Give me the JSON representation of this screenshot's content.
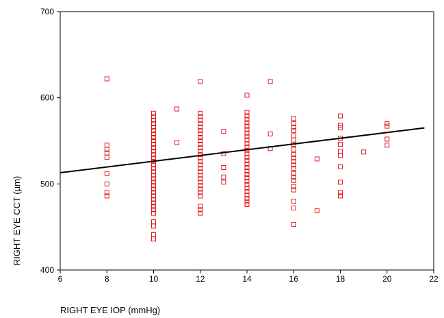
{
  "chart_data": {
    "type": "scatter",
    "title": "",
    "xlabel": "RIGHT EYE  IOP (mmHg)",
    "ylabel": "RIGHT EYE CCT (µm)",
    "xlim": [
      6,
      22
    ],
    "ylim": [
      400,
      700
    ],
    "x_ticks": [
      "6",
      "8",
      "10",
      "12",
      "14",
      "16",
      "18",
      "20",
      "22"
    ],
    "y_ticks": [
      "400",
      "500",
      "600",
      "700"
    ],
    "x_tick_values": [
      6,
      8,
      10,
      12,
      14,
      16,
      18,
      20,
      22
    ],
    "y_tick_values": [
      400,
      500,
      600,
      700
    ],
    "grid": false,
    "marker": "open-square",
    "marker_color": "#e41a1c",
    "line_color": "#000000",
    "series": [
      {
        "points": [
          [
            8,
            622
          ],
          [
            8,
            545
          ],
          [
            8,
            540
          ],
          [
            8,
            536
          ],
          [
            8,
            531
          ],
          [
            8,
            512
          ],
          [
            8,
            500
          ],
          [
            8,
            490
          ],
          [
            8,
            486
          ],
          [
            10,
            582
          ],
          [
            10,
            578
          ],
          [
            10,
            574
          ],
          [
            10,
            570
          ],
          [
            10,
            566
          ],
          [
            10,
            562
          ],
          [
            10,
            558
          ],
          [
            10,
            554
          ],
          [
            10,
            550
          ],
          [
            10,
            546
          ],
          [
            10,
            542
          ],
          [
            10,
            538
          ],
          [
            10,
            534
          ],
          [
            10,
            530
          ],
          [
            10,
            526
          ],
          [
            10,
            522
          ],
          [
            10,
            518
          ],
          [
            10,
            514
          ],
          [
            10,
            510
          ],
          [
            10,
            506
          ],
          [
            10,
            502
          ],
          [
            10,
            498
          ],
          [
            10,
            494
          ],
          [
            10,
            490
          ],
          [
            10,
            486
          ],
          [
            10,
            482
          ],
          [
            10,
            478
          ],
          [
            10,
            474
          ],
          [
            10,
            470
          ],
          [
            10,
            466
          ],
          [
            10,
            456
          ],
          [
            10,
            451
          ],
          [
            10,
            441
          ],
          [
            10,
            436
          ],
          [
            11,
            587
          ],
          [
            11,
            548
          ],
          [
            12,
            619
          ],
          [
            12,
            582
          ],
          [
            12,
            578
          ],
          [
            12,
            574
          ],
          [
            12,
            570
          ],
          [
            12,
            566
          ],
          [
            12,
            562
          ],
          [
            12,
            558
          ],
          [
            12,
            554
          ],
          [
            12,
            550
          ],
          [
            12,
            546
          ],
          [
            12,
            542
          ],
          [
            12,
            538
          ],
          [
            12,
            534
          ],
          [
            12,
            530
          ],
          [
            12,
            526
          ],
          [
            12,
            522
          ],
          [
            12,
            518
          ],
          [
            12,
            514
          ],
          [
            12,
            510
          ],
          [
            12,
            506
          ],
          [
            12,
            502
          ],
          [
            12,
            498
          ],
          [
            12,
            494
          ],
          [
            12,
            490
          ],
          [
            12,
            486
          ],
          [
            12,
            474
          ],
          [
            12,
            470
          ],
          [
            12,
            466
          ],
          [
            13,
            561
          ],
          [
            13,
            535
          ],
          [
            13,
            519
          ],
          [
            13,
            508
          ],
          [
            13,
            502
          ],
          [
            14,
            603
          ],
          [
            14,
            583
          ],
          [
            14,
            579
          ],
          [
            14,
            575
          ],
          [
            14,
            571
          ],
          [
            14,
            567
          ],
          [
            14,
            563
          ],
          [
            14,
            559
          ],
          [
            14,
            555
          ],
          [
            14,
            551
          ],
          [
            14,
            547
          ],
          [
            14,
            543
          ],
          [
            14,
            539
          ],
          [
            14,
            535
          ],
          [
            14,
            531
          ],
          [
            14,
            527
          ],
          [
            14,
            523
          ],
          [
            14,
            519
          ],
          [
            14,
            515
          ],
          [
            14,
            511
          ],
          [
            14,
            507
          ],
          [
            14,
            503
          ],
          [
            14,
            499
          ],
          [
            14,
            495
          ],
          [
            14,
            491
          ],
          [
            14,
            487
          ],
          [
            14,
            483
          ],
          [
            14,
            479
          ],
          [
            14,
            476
          ],
          [
            15,
            619
          ],
          [
            15,
            558
          ],
          [
            15,
            541
          ],
          [
            16,
            576
          ],
          [
            16,
            570
          ],
          [
            16,
            566
          ],
          [
            16,
            562
          ],
          [
            16,
            556
          ],
          [
            16,
            551
          ],
          [
            16,
            546
          ],
          [
            16,
            540
          ],
          [
            16,
            534
          ],
          [
            16,
            530
          ],
          [
            16,
            526
          ],
          [
            16,
            522
          ],
          [
            16,
            518
          ],
          [
            16,
            512
          ],
          [
            16,
            508
          ],
          [
            16,
            504
          ],
          [
            16,
            497
          ],
          [
            16,
            493
          ],
          [
            16,
            480
          ],
          [
            16,
            472
          ],
          [
            16,
            453
          ],
          [
            17,
            529
          ],
          [
            17,
            469
          ],
          [
            18,
            579
          ],
          [
            18,
            568
          ],
          [
            18,
            565
          ],
          [
            18,
            553
          ],
          [
            18,
            546
          ],
          [
            18,
            538
          ],
          [
            18,
            533
          ],
          [
            18,
            520
          ],
          [
            18,
            502
          ],
          [
            18,
            490
          ],
          [
            18,
            486
          ],
          [
            19,
            537
          ],
          [
            20,
            570
          ],
          [
            20,
            567
          ],
          [
            20,
            552
          ],
          [
            20,
            545
          ]
        ]
      }
    ],
    "fit_line": {
      "x": [
        6,
        21.6
      ],
      "y": [
        513,
        565
      ]
    }
  }
}
